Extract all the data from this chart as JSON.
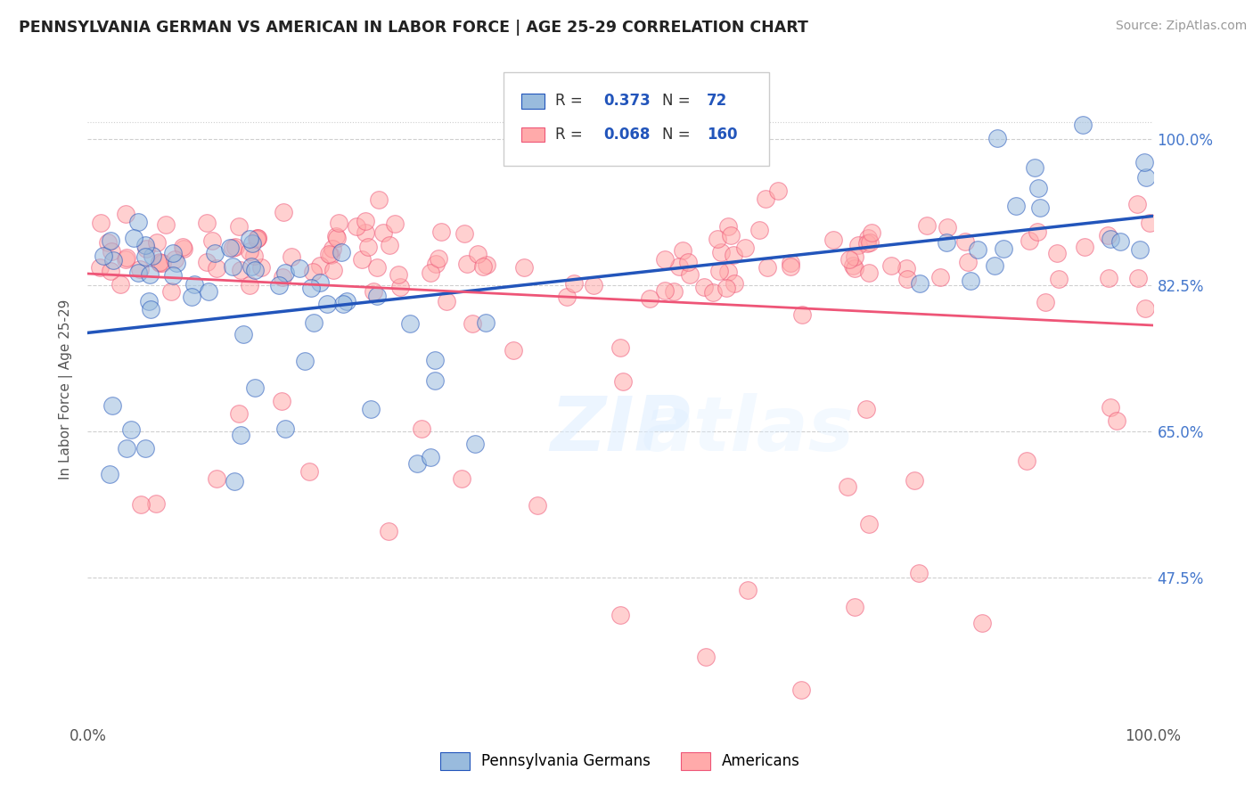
{
  "title": "PENNSYLVANIA GERMAN VS AMERICAN IN LABOR FORCE | AGE 25-29 CORRELATION CHART",
  "source": "Source: ZipAtlas.com",
  "ylabel": "In Labor Force | Age 25-29",
  "xlim": [
    0.0,
    1.0
  ],
  "ylim": [
    0.3,
    1.1
  ],
  "yticks": [
    0.475,
    0.65,
    0.825,
    1.0
  ],
  "ytick_labels": [
    "47.5%",
    "65.0%",
    "82.5%",
    "100.0%"
  ],
  "blue_color": "#99BBDD",
  "pink_color": "#FFAAAA",
  "blue_line_color": "#2255BB",
  "pink_line_color": "#EE5577",
  "watermark_text": "ZIPatlas",
  "legend_R_blue": "0.373",
  "legend_N_blue": "72",
  "legend_R_pink": "0.068",
  "legend_N_pink": "160",
  "blue_seed": 42,
  "pink_seed": 99
}
